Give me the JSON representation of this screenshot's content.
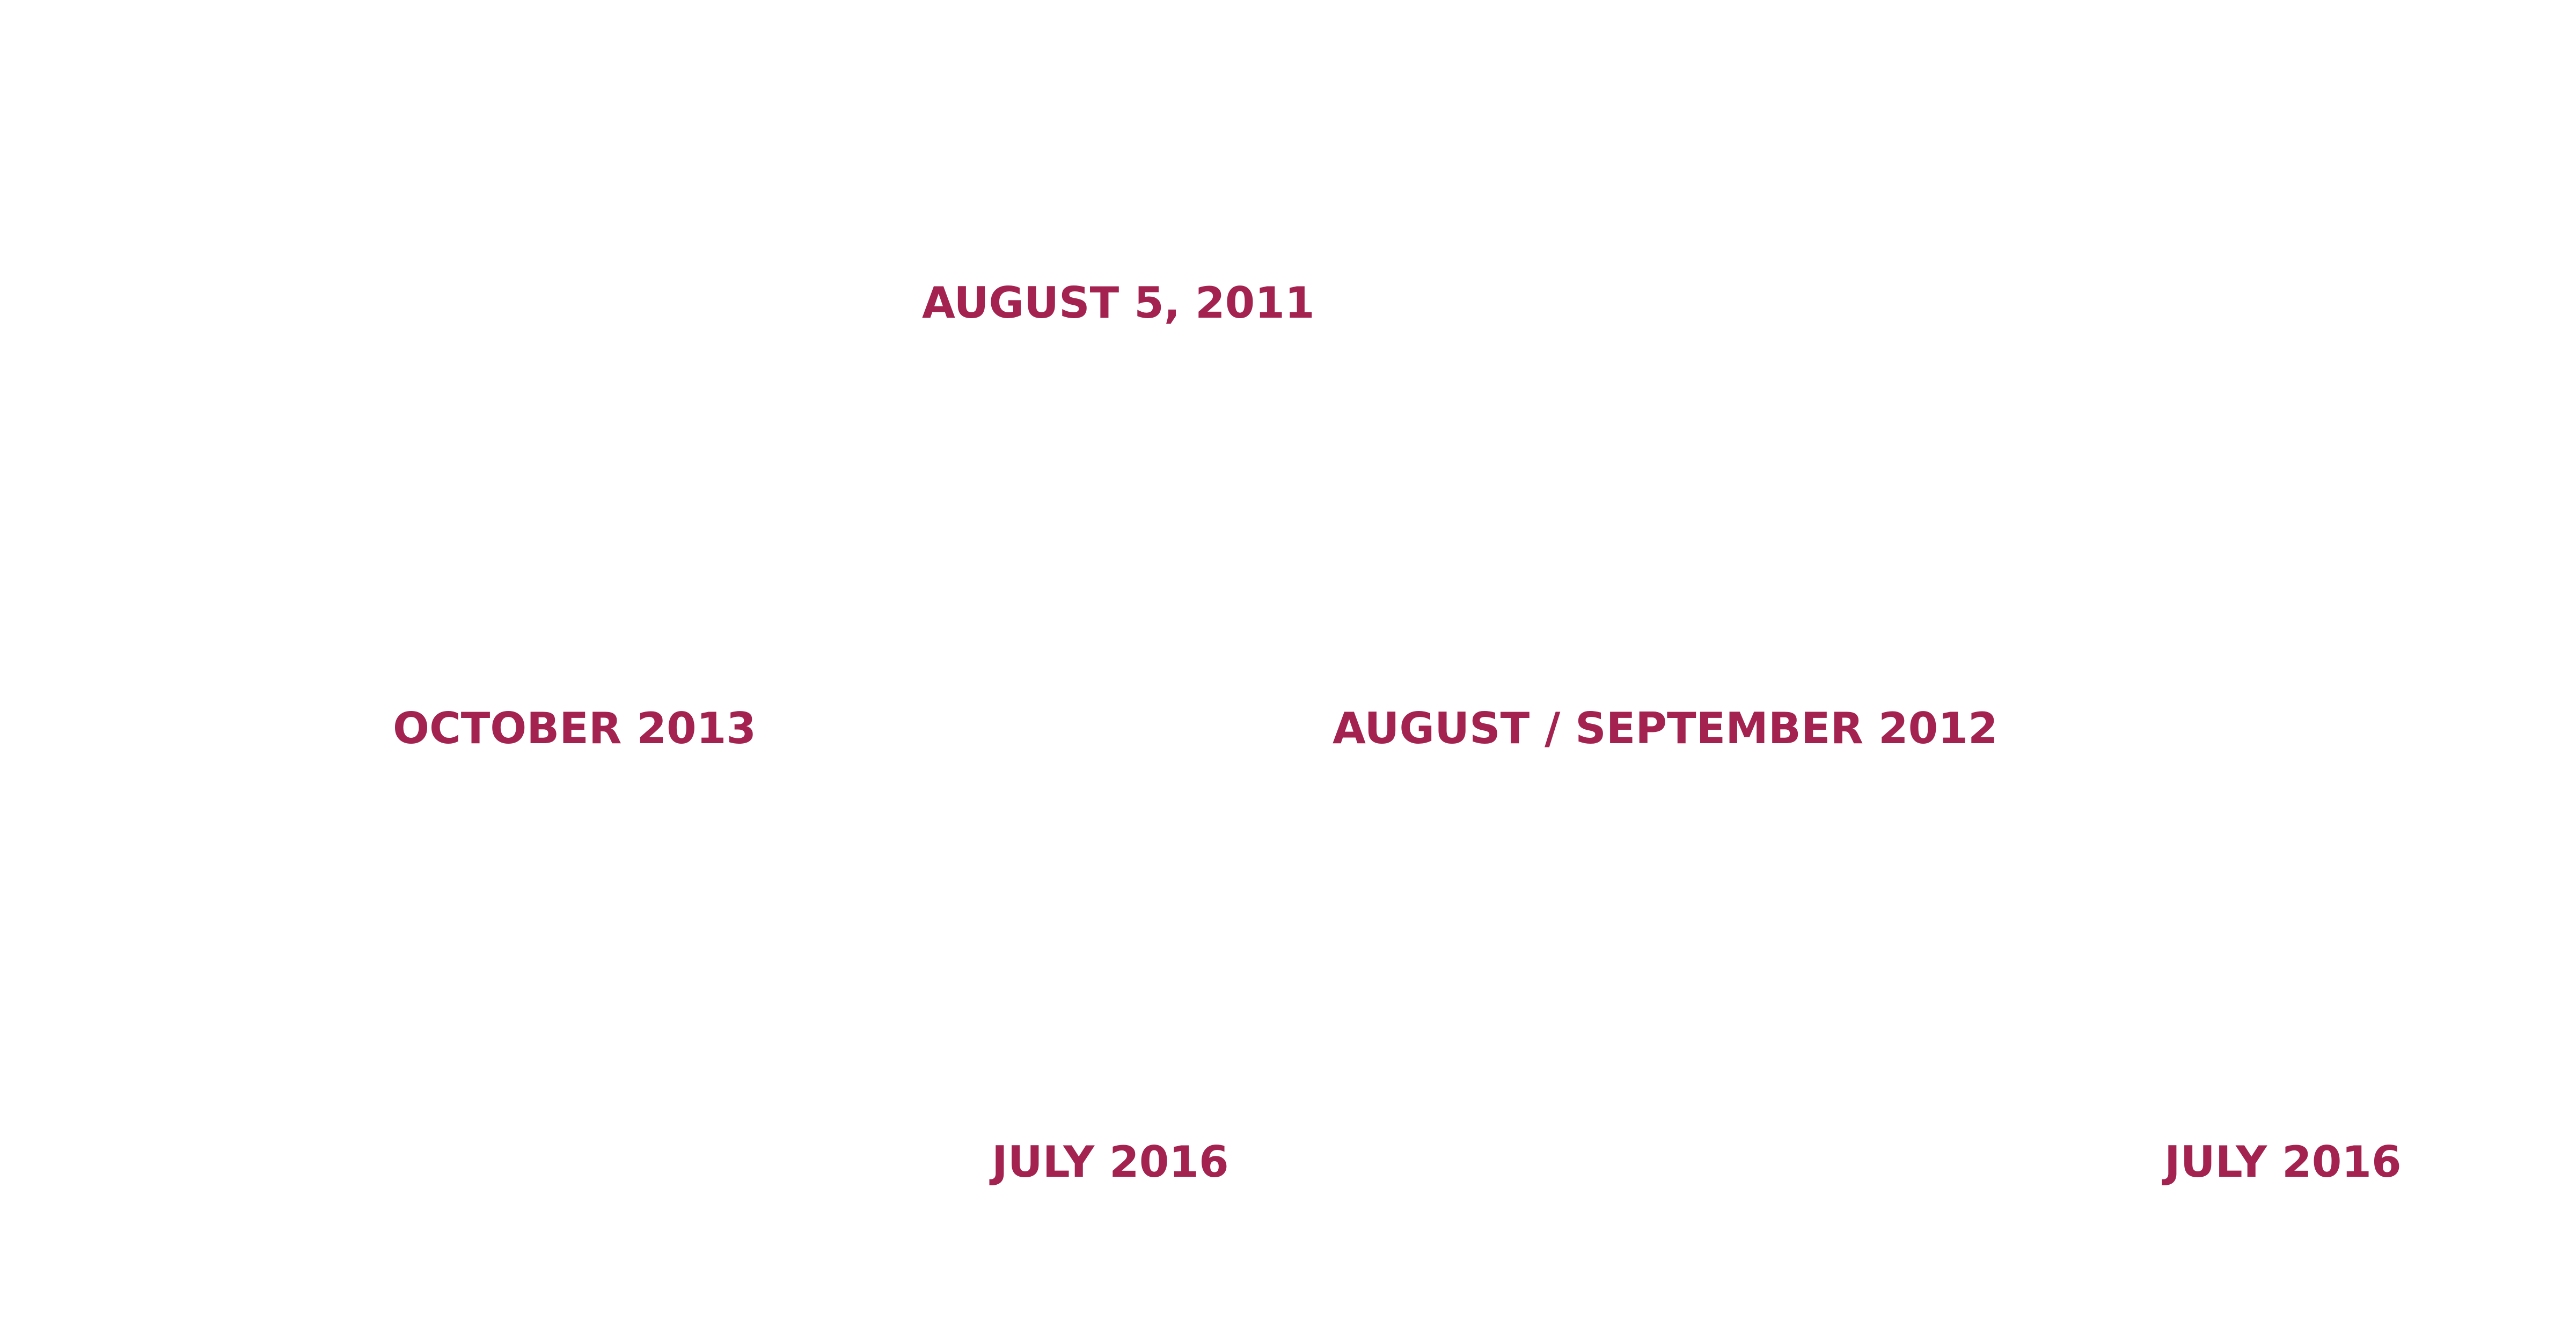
{
  "colors": {
    "background": "#ffffff",
    "date_text": "#a3224f"
  },
  "dates": [
    "AUGUST 5, 2011",
    "OCTOBER 2013",
    "AUGUST / SEPTEMBER 2012",
    "JULY 2016",
    "JULY 2016"
  ]
}
